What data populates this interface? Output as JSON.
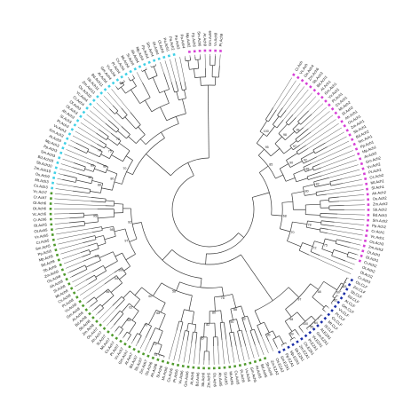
{
  "tree": {
    "tips": [
      {
        "label": "Cr.Ach",
        "clade": "magenta"
      },
      {
        "label": "Vc.Ach",
        "clade": "magenta"
      },
      {
        "label": "Os.Ach4",
        "clade": "magenta"
      },
      {
        "label": "Zm.Ach6",
        "clade": "magenta"
      },
      {
        "label": "Sb.Ach3",
        "clade": "magenta"
      },
      {
        "label": "Bd.Ach1",
        "clade": "magenta"
      },
      {
        "label": "At.Ach1",
        "clade": "magenta"
      },
      {
        "label": "Gm.Ach1",
        "clade": "magenta"
      },
      {
        "label": "Vv.Ach1",
        "clade": "magenta"
      },
      {
        "label": "Pt.Ach1",
        "clade": "magenta"
      },
      {
        "label": "Cs.Ach1",
        "clade": "magenta"
      },
      {
        "label": "Mt.Ach2",
        "clade": "magenta"
      },
      {
        "label": "Sl.Ach2",
        "clade": "magenta"
      },
      {
        "label": "Ah.Ach1",
        "clade": "magenta"
      },
      {
        "label": "Os.Ach1",
        "clade": "magenta"
      },
      {
        "label": "Zm.Ach1",
        "clade": "magenta"
      },
      {
        "label": "Sb.Ach1",
        "clade": "magenta"
      },
      {
        "label": "Bd.Ach2",
        "clade": "magenta"
      },
      {
        "label": "Sm.Ach1",
        "clade": "magenta"
      },
      {
        "label": "Pp.Ach1",
        "clade": "magenta"
      },
      {
        "label": "Mp.Ach1",
        "clade": "magenta"
      },
      {
        "label": "At.Ach2",
        "clade": "magenta"
      },
      {
        "label": "Gm.Ach2",
        "clade": "magenta"
      },
      {
        "label": "Vv.Ach2",
        "clade": "magenta"
      },
      {
        "label": "Pt.Ach2",
        "clade": "magenta"
      },
      {
        "label": "Cs.Ach2",
        "clade": "magenta"
      },
      {
        "label": "Mt.Ach1",
        "clade": "magenta"
      },
      {
        "label": "Sl.Ach1",
        "clade": "magenta"
      },
      {
        "label": "Ah.Ach2",
        "clade": "magenta"
      },
      {
        "label": "Os.Ach2",
        "clade": "magenta"
      },
      {
        "label": "Zm.Ach2",
        "clade": "magenta"
      },
      {
        "label": "Sb.Ach2",
        "clade": "magenta"
      },
      {
        "label": "Bd.Ach3",
        "clade": "magenta"
      },
      {
        "label": "Sm.Ach2",
        "clade": "magenta"
      },
      {
        "label": "Pp.Ach2",
        "clade": "magenta"
      },
      {
        "label": "Cr.Ach1",
        "clade": "magenta"
      },
      {
        "label": "Vc.Ach1",
        "clade": "magenta"
      },
      {
        "label": "Os.Ach3",
        "clade": "magenta"
      },
      {
        "label": "Zm.Ach3",
        "clade": "magenta"
      },
      {
        "label": "Ot.Ach1",
        "clade": "magenta"
      },
      {
        "label": "Ol.Ach1",
        "clade": "magenta"
      },
      {
        "label": "Cr.Ach2",
        "clade": "magenta"
      },
      {
        "label": "Ot.Ach2",
        "clade": "none"
      },
      {
        "label": "Ol.Ach2",
        "clade": "none"
      },
      {
        "label": "Cr.Ach3",
        "clade": "none"
      },
      {
        "label": "Os.CLF",
        "clade": "blue"
      },
      {
        "label": "Zm.CLF",
        "clade": "blue"
      },
      {
        "label": "Sb.CLF",
        "clade": "blue"
      },
      {
        "label": "Bd.CLF",
        "clade": "blue"
      },
      {
        "label": "At.CLF",
        "clade": "blue"
      },
      {
        "label": "Gm.CLF",
        "clade": "blue"
      },
      {
        "label": "Vv.CLF",
        "clade": "blue"
      },
      {
        "label": "Pt.CLF",
        "clade": "blue"
      },
      {
        "label": "Cs.CLF",
        "clade": "blue"
      },
      {
        "label": "Mt.CLF",
        "clade": "blue"
      },
      {
        "label": "Sl.CLF",
        "clade": "blue"
      },
      {
        "label": "At.EZA1",
        "clade": "blue"
      },
      {
        "label": "Gm.EZA1",
        "clade": "blue"
      },
      {
        "label": "Vv.EZA1",
        "clade": "blue"
      },
      {
        "label": "Pt.EZA1",
        "clade": "blue"
      },
      {
        "label": "Os.EZA1",
        "clade": "blue"
      },
      {
        "label": "Zm.EZA1",
        "clade": "blue"
      },
      {
        "label": "Sb.EZA1",
        "clade": "blue"
      },
      {
        "label": "Mp.EZA1",
        "clade": "blue"
      },
      {
        "label": "Pp.EZA1",
        "clade": "blue"
      },
      {
        "label": "Sm.EZA1",
        "clade": "blue"
      },
      {
        "label": "Os.EZA2",
        "clade": "none"
      },
      {
        "label": "Zm.EZA2",
        "clade": "none"
      },
      {
        "label": "Sb.Ach5",
        "clade": "green"
      },
      {
        "label": "Bd.Ach5",
        "clade": "green"
      },
      {
        "label": "At.Ach5",
        "clade": "green"
      },
      {
        "label": "Gm.Ach5",
        "clade": "green"
      },
      {
        "label": "Vv.Ach5",
        "clade": "green"
      },
      {
        "label": "Pt.Ach5",
        "clade": "green"
      },
      {
        "label": "Cs.Ach5",
        "clade": "green"
      },
      {
        "label": "Mt.Ach5",
        "clade": "green"
      },
      {
        "label": "Sl.Ach5",
        "clade": "green"
      },
      {
        "label": "Ah.Ach5",
        "clade": "green"
      },
      {
        "label": "Os.Ach5",
        "clade": "green"
      },
      {
        "label": "Zm.Ach5",
        "clade": "green"
      },
      {
        "label": "Sb.Ach6",
        "clade": "green"
      },
      {
        "label": "Bd.Ach6",
        "clade": "green"
      },
      {
        "label": "At.Ach6",
        "clade": "green"
      },
      {
        "label": "Gm.Ach6",
        "clade": "green"
      },
      {
        "label": "Vv.Ach6",
        "clade": "green"
      },
      {
        "label": "Pt.Ach6",
        "clade": "green"
      },
      {
        "label": "Cs.Ach6",
        "clade": "green"
      },
      {
        "label": "Mt.Ach6",
        "clade": "green"
      },
      {
        "label": "Sl.Ach6",
        "clade": "green"
      },
      {
        "label": "Ah.Ach6",
        "clade": "green"
      },
      {
        "label": "Os.Ach6",
        "clade": "green"
      },
      {
        "label": "Zm.Ach7",
        "clade": "green"
      },
      {
        "label": "Sb.Ach7",
        "clade": "green"
      },
      {
        "label": "Bd.Ach7",
        "clade": "green"
      },
      {
        "label": "At.Ach7",
        "clade": "green"
      },
      {
        "label": "Gm.Ach7",
        "clade": "green"
      },
      {
        "label": "Vv.Ach7",
        "clade": "green"
      },
      {
        "label": "Pt.Ach7",
        "clade": "green"
      },
      {
        "label": "Cs.Ach7",
        "clade": "green"
      },
      {
        "label": "Mt.Ach7",
        "clade": "green"
      },
      {
        "label": "Sl.Ach7",
        "clade": "green"
      },
      {
        "label": "Ah.Ach7",
        "clade": "green"
      },
      {
        "label": "Os.Ach7",
        "clade": "green"
      },
      {
        "label": "Zm.Ach8",
        "clade": "green"
      },
      {
        "label": "Sb.Ach8",
        "clade": "green"
      },
      {
        "label": "Bd.Ach8",
        "clade": "green"
      },
      {
        "label": "At.Ach8",
        "clade": "green"
      },
      {
        "label": "Gm.Ach8",
        "clade": "green"
      },
      {
        "label": "Vv.Ach8",
        "clade": "green"
      },
      {
        "label": "Pt.Ach8",
        "clade": "green"
      },
      {
        "label": "Cs.Ach8",
        "clade": "green"
      },
      {
        "label": "Mt.Ach8",
        "clade": "green"
      },
      {
        "label": "Sl.Ach8",
        "clade": "green"
      },
      {
        "label": "Ah.Ach8",
        "clade": "green"
      },
      {
        "label": "Os.Ach8",
        "clade": "green"
      },
      {
        "label": "Zm.Ach9",
        "clade": "green"
      },
      {
        "label": "Sb.Ach9",
        "clade": "green"
      },
      {
        "label": "Bd.Ach9",
        "clade": "green"
      },
      {
        "label": "Mp.Ach5",
        "clade": "green"
      },
      {
        "label": "Pp.Ach5",
        "clade": "green"
      },
      {
        "label": "Sm.Ach5",
        "clade": "green"
      },
      {
        "label": "Cr.Ach5",
        "clade": "green"
      },
      {
        "label": "Vc.Ach5",
        "clade": "green"
      },
      {
        "label": "Ot.Ach5",
        "clade": "green"
      },
      {
        "label": "Ol.Ach5",
        "clade": "green"
      },
      {
        "label": "Cr.Ach6",
        "clade": "green"
      },
      {
        "label": "Vc.Ach6",
        "clade": "green"
      },
      {
        "label": "Ot.Ach6",
        "clade": "green"
      },
      {
        "label": "Ol.Ach6",
        "clade": "green"
      },
      {
        "label": "Cr.Ach7",
        "clade": "green"
      },
      {
        "label": "Vc.Ach7",
        "clade": "green"
      },
      {
        "label": "Cs.Ach3",
        "clade": "cyan"
      },
      {
        "label": "Mt.Ach3",
        "clade": "cyan"
      },
      {
        "label": "Os.Ach9",
        "clade": "cyan"
      },
      {
        "label": "Zm.Ach10",
        "clade": "cyan"
      },
      {
        "label": "Sb.Ach10",
        "clade": "cyan"
      },
      {
        "label": "Bd.Ach10",
        "clade": "cyan"
      },
      {
        "label": "Sm.Ach3",
        "clade": "cyan"
      },
      {
        "label": "Pp.Ach3",
        "clade": "cyan"
      },
      {
        "label": "Mp.Ach3",
        "clade": "cyan"
      },
      {
        "label": "At.Ach3",
        "clade": "cyan"
      },
      {
        "label": "Gm.Ach3",
        "clade": "cyan"
      },
      {
        "label": "Vv.Ach3",
        "clade": "cyan"
      },
      {
        "label": "Pt.Ach3",
        "clade": "cyan"
      },
      {
        "label": "Sl.Ach3",
        "clade": "cyan"
      },
      {
        "label": "Ah.Ach3",
        "clade": "cyan"
      },
      {
        "label": "Ot.Ach3",
        "clade": "cyan"
      },
      {
        "label": "Ol.Ach3",
        "clade": "cyan"
      },
      {
        "label": "Cr.Ach4",
        "clade": "cyan"
      },
      {
        "label": "Vc.Ach4",
        "clade": "cyan"
      },
      {
        "label": "Os.Ach10",
        "clade": "cyan"
      },
      {
        "label": "Zm.Ach11",
        "clade": "cyan"
      },
      {
        "label": "Sb.Ach11",
        "clade": "cyan"
      },
      {
        "label": "Bd.Ach11",
        "clade": "cyan"
      },
      {
        "label": "At.Ach4",
        "clade": "cyan"
      },
      {
        "label": "Gm.Ach4",
        "clade": "cyan"
      },
      {
        "label": "Vv.Ach4",
        "clade": "cyan"
      },
      {
        "label": "Pt.Ach4",
        "clade": "cyan"
      },
      {
        "label": "Cs.Ach4",
        "clade": "cyan"
      },
      {
        "label": "Mt.Ach4",
        "clade": "cyan"
      },
      {
        "label": "Sl.Ach4",
        "clade": "cyan"
      },
      {
        "label": "Ah.Ach4",
        "clade": "cyan"
      },
      {
        "label": "Mp.Ach4",
        "clade": "cyan"
      },
      {
        "label": "Pp.Ach4",
        "clade": "cyan"
      },
      {
        "label": "Sm.Ach4",
        "clade": "cyan"
      },
      {
        "label": "Ot.Ach4",
        "clade": "cyan"
      },
      {
        "label": "Ol.Ach4",
        "clade": "cyan"
      },
      {
        "label": "Pa.Ach1",
        "clade": "cyan"
      },
      {
        "label": "Pa.Ach2",
        "clade": "cyan"
      },
      {
        "label": "Pa.Ach3",
        "clade": "none"
      },
      {
        "label": "Pa.Ach4",
        "clade": "none"
      },
      {
        "label": "Mp.Ach2",
        "clade": "magenta"
      },
      {
        "label": "Pp.Ach6",
        "clade": "magenta"
      },
      {
        "label": "Sm.Ach6",
        "clade": "magenta"
      },
      {
        "label": "At.Ach9",
        "clade": "magenta"
      },
      {
        "label": "Gm.Ach9",
        "clade": "magenta"
      },
      {
        "label": "Vv.Ach9",
        "clade": "magenta"
      },
      {
        "label": "Pt.Ach9",
        "clade": "magenta"
      }
    ],
    "bootstrap_values": [
      "100",
      "99",
      "98",
      "97",
      "95",
      "92",
      "90",
      "88",
      "85",
      "82",
      "80",
      "78",
      "75",
      "72",
      "70",
      "68",
      "65",
      "62",
      "60",
      "58",
      "56",
      "54"
    ]
  },
  "clade_colors": {
    "magenta": "#d63fd6",
    "blue": "#1c2fa6",
    "green": "#4f9a2c",
    "cyan": "#3fd0e6",
    "none": "#ffffff"
  }
}
